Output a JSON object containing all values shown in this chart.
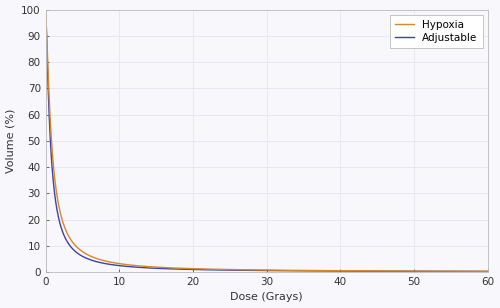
{
  "title": "",
  "xlabel": "Dose (Grays)",
  "ylabel": "Volume (%)",
  "xlim": [
    0,
    60
  ],
  "ylim": [
    0,
    100
  ],
  "xticks": [
    0,
    10,
    20,
    30,
    40,
    50,
    60
  ],
  "yticks": [
    0,
    10,
    20,
    30,
    40,
    50,
    60,
    70,
    80,
    90,
    100
  ],
  "hypoxia_color": "#D4882A",
  "adjustable_color": "#4040A8",
  "legend_labels": [
    "Hypoxia",
    "Adjustable"
  ],
  "bg_color": "#F8F8FC",
  "grid_color": "#E8E8F0",
  "line_width": 1.0,
  "figsize": [
    5.0,
    3.08
  ],
  "dpi": 100
}
